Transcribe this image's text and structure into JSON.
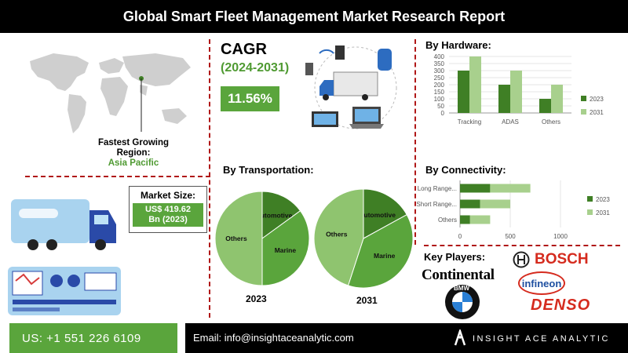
{
  "title": "Global Smart Fleet Management Market Research Report",
  "region": {
    "label_line1": "Fastest Growing",
    "label_line2": "Region:",
    "value": "Asia Pacific"
  },
  "market_size": {
    "label": "Market Size:",
    "value_line1": "US$ 419.62",
    "value_line2": "Bn (2023)"
  },
  "cagr": {
    "label": "CAGR",
    "period": "(2024-2031)",
    "value": "11.56%"
  },
  "key_players": {
    "label": "Key Players:",
    "logos": [
      "BOSCH",
      "Continental",
      "infineon",
      "BMW",
      "DENSO"
    ]
  },
  "footer": {
    "phone": "US: +1 551 226 6109",
    "email": "Email: info@insightaceanalytic.com",
    "brand": "INSIGHT ACE ANALYTIC"
  },
  "colors": {
    "dark_green": "#3f7f25",
    "mid_green": "#5aa53c",
    "light_green": "#a8d08d",
    "pale_green": "#8fc46f",
    "accent_red": "#b01818"
  },
  "chart_data": [
    {
      "type": "bar",
      "title": "By Hardware:",
      "categories": [
        "Tracking",
        "ADAS",
        "Others"
      ],
      "series": [
        {
          "name": "2023",
          "values": [
            300,
            200,
            100
          ]
        },
        {
          "name": "2031",
          "values": [
            400,
            300,
            200
          ]
        }
      ],
      "ylim": [
        0,
        400
      ],
      "yticks": [
        0,
        50,
        100,
        150,
        200,
        250,
        300,
        350,
        400
      ],
      "legend": "right"
    },
    {
      "type": "pie",
      "title": "By Transportation:",
      "year": "2023",
      "labels": [
        "Automotive",
        "Marine",
        "Others"
      ],
      "values": [
        15,
        35,
        50
      ]
    },
    {
      "type": "pie",
      "year": "2031",
      "labels": [
        "Automotive",
        "Marine",
        "Others"
      ],
      "values": [
        17,
        38,
        45
      ]
    },
    {
      "type": "bar",
      "orientation": "horizontal",
      "title": "By Connectivity:",
      "categories": [
        "Long Range...",
        "Short Range...",
        "Others"
      ],
      "series": [
        {
          "name": "2023",
          "values": [
            300,
            200,
            100
          ]
        },
        {
          "name": "2031",
          "values": [
            400,
            300,
            200
          ]
        }
      ],
      "xlim": [
        0,
        1000
      ],
      "xticks": [
        0,
        500,
        1000
      ],
      "legend": "right"
    }
  ]
}
